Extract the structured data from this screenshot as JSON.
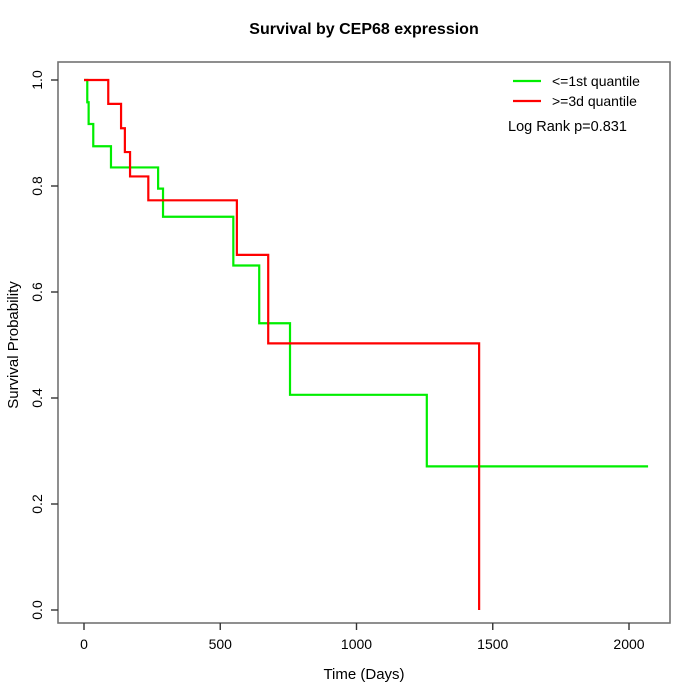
{
  "window": {
    "title": "Survival by CEP68 expression"
  },
  "colors": {
    "series_green": "#00ee00",
    "series_red": "#ff0000",
    "axis_box": "#737373",
    "tick": "#333333",
    "text": "#000000",
    "background": "#ffffff"
  },
  "chart_data": {
    "type": "line",
    "subtype": "kaplan-meier-step",
    "title": "Survival by CEP68 expression",
    "xlabel": "Time (Days)",
    "ylabel": "Survival Probability",
    "xlim": [
      -95,
      2150
    ],
    "ylim": [
      -0.02,
      1.03
    ],
    "grid": false,
    "legend_position": "top-right",
    "annotation": "Log Rank p=0.831",
    "x_ticks": [
      {
        "value": 0,
        "label": "0"
      },
      {
        "value": 500,
        "label": "500"
      },
      {
        "value": 1000,
        "label": "1000"
      },
      {
        "value": 1500,
        "label": "1500"
      },
      {
        "value": 2000,
        "label": "2000"
      }
    ],
    "y_ticks": [
      {
        "value": 0.0,
        "label": "0.0"
      },
      {
        "value": 0.2,
        "label": "0.2"
      },
      {
        "value": 0.4,
        "label": "0.4"
      },
      {
        "value": 0.6,
        "label": "0.6"
      },
      {
        "value": 0.8,
        "label": "0.8"
      },
      {
        "value": 1.0,
        "label": "1.0"
      }
    ],
    "series": [
      {
        "name": "<=1st quantile",
        "color": "#00ee00",
        "points": [
          [
            0,
            1.0
          ],
          [
            12,
            0.958
          ],
          [
            17,
            0.917
          ],
          [
            34,
            0.875
          ],
          [
            99,
            0.835
          ],
          [
            272,
            0.795
          ],
          [
            290,
            0.742
          ],
          [
            548,
            0.65
          ],
          [
            643,
            0.541
          ],
          [
            756,
            0.406
          ],
          [
            1258,
            0.271
          ]
        ],
        "end_time": 2070
      },
      {
        "name": ">=3d quantile",
        "color": "#ff0000",
        "points": [
          [
            0,
            1.0
          ],
          [
            89,
            0.955
          ],
          [
            136,
            0.909
          ],
          [
            150,
            0.864
          ],
          [
            169,
            0.818
          ],
          [
            236,
            0.773
          ],
          [
            561,
            0.67
          ],
          [
            676,
            0.503
          ],
          [
            1450,
            0.0
          ]
        ],
        "end_time": 1450
      }
    ]
  },
  "legend": {
    "items": [
      {
        "label": "<=1st quantile",
        "color": "#00ee00"
      },
      {
        "label": ">=3d quantile",
        "color": "#ff0000"
      }
    ],
    "annotation": "Log Rank p=0.831"
  }
}
